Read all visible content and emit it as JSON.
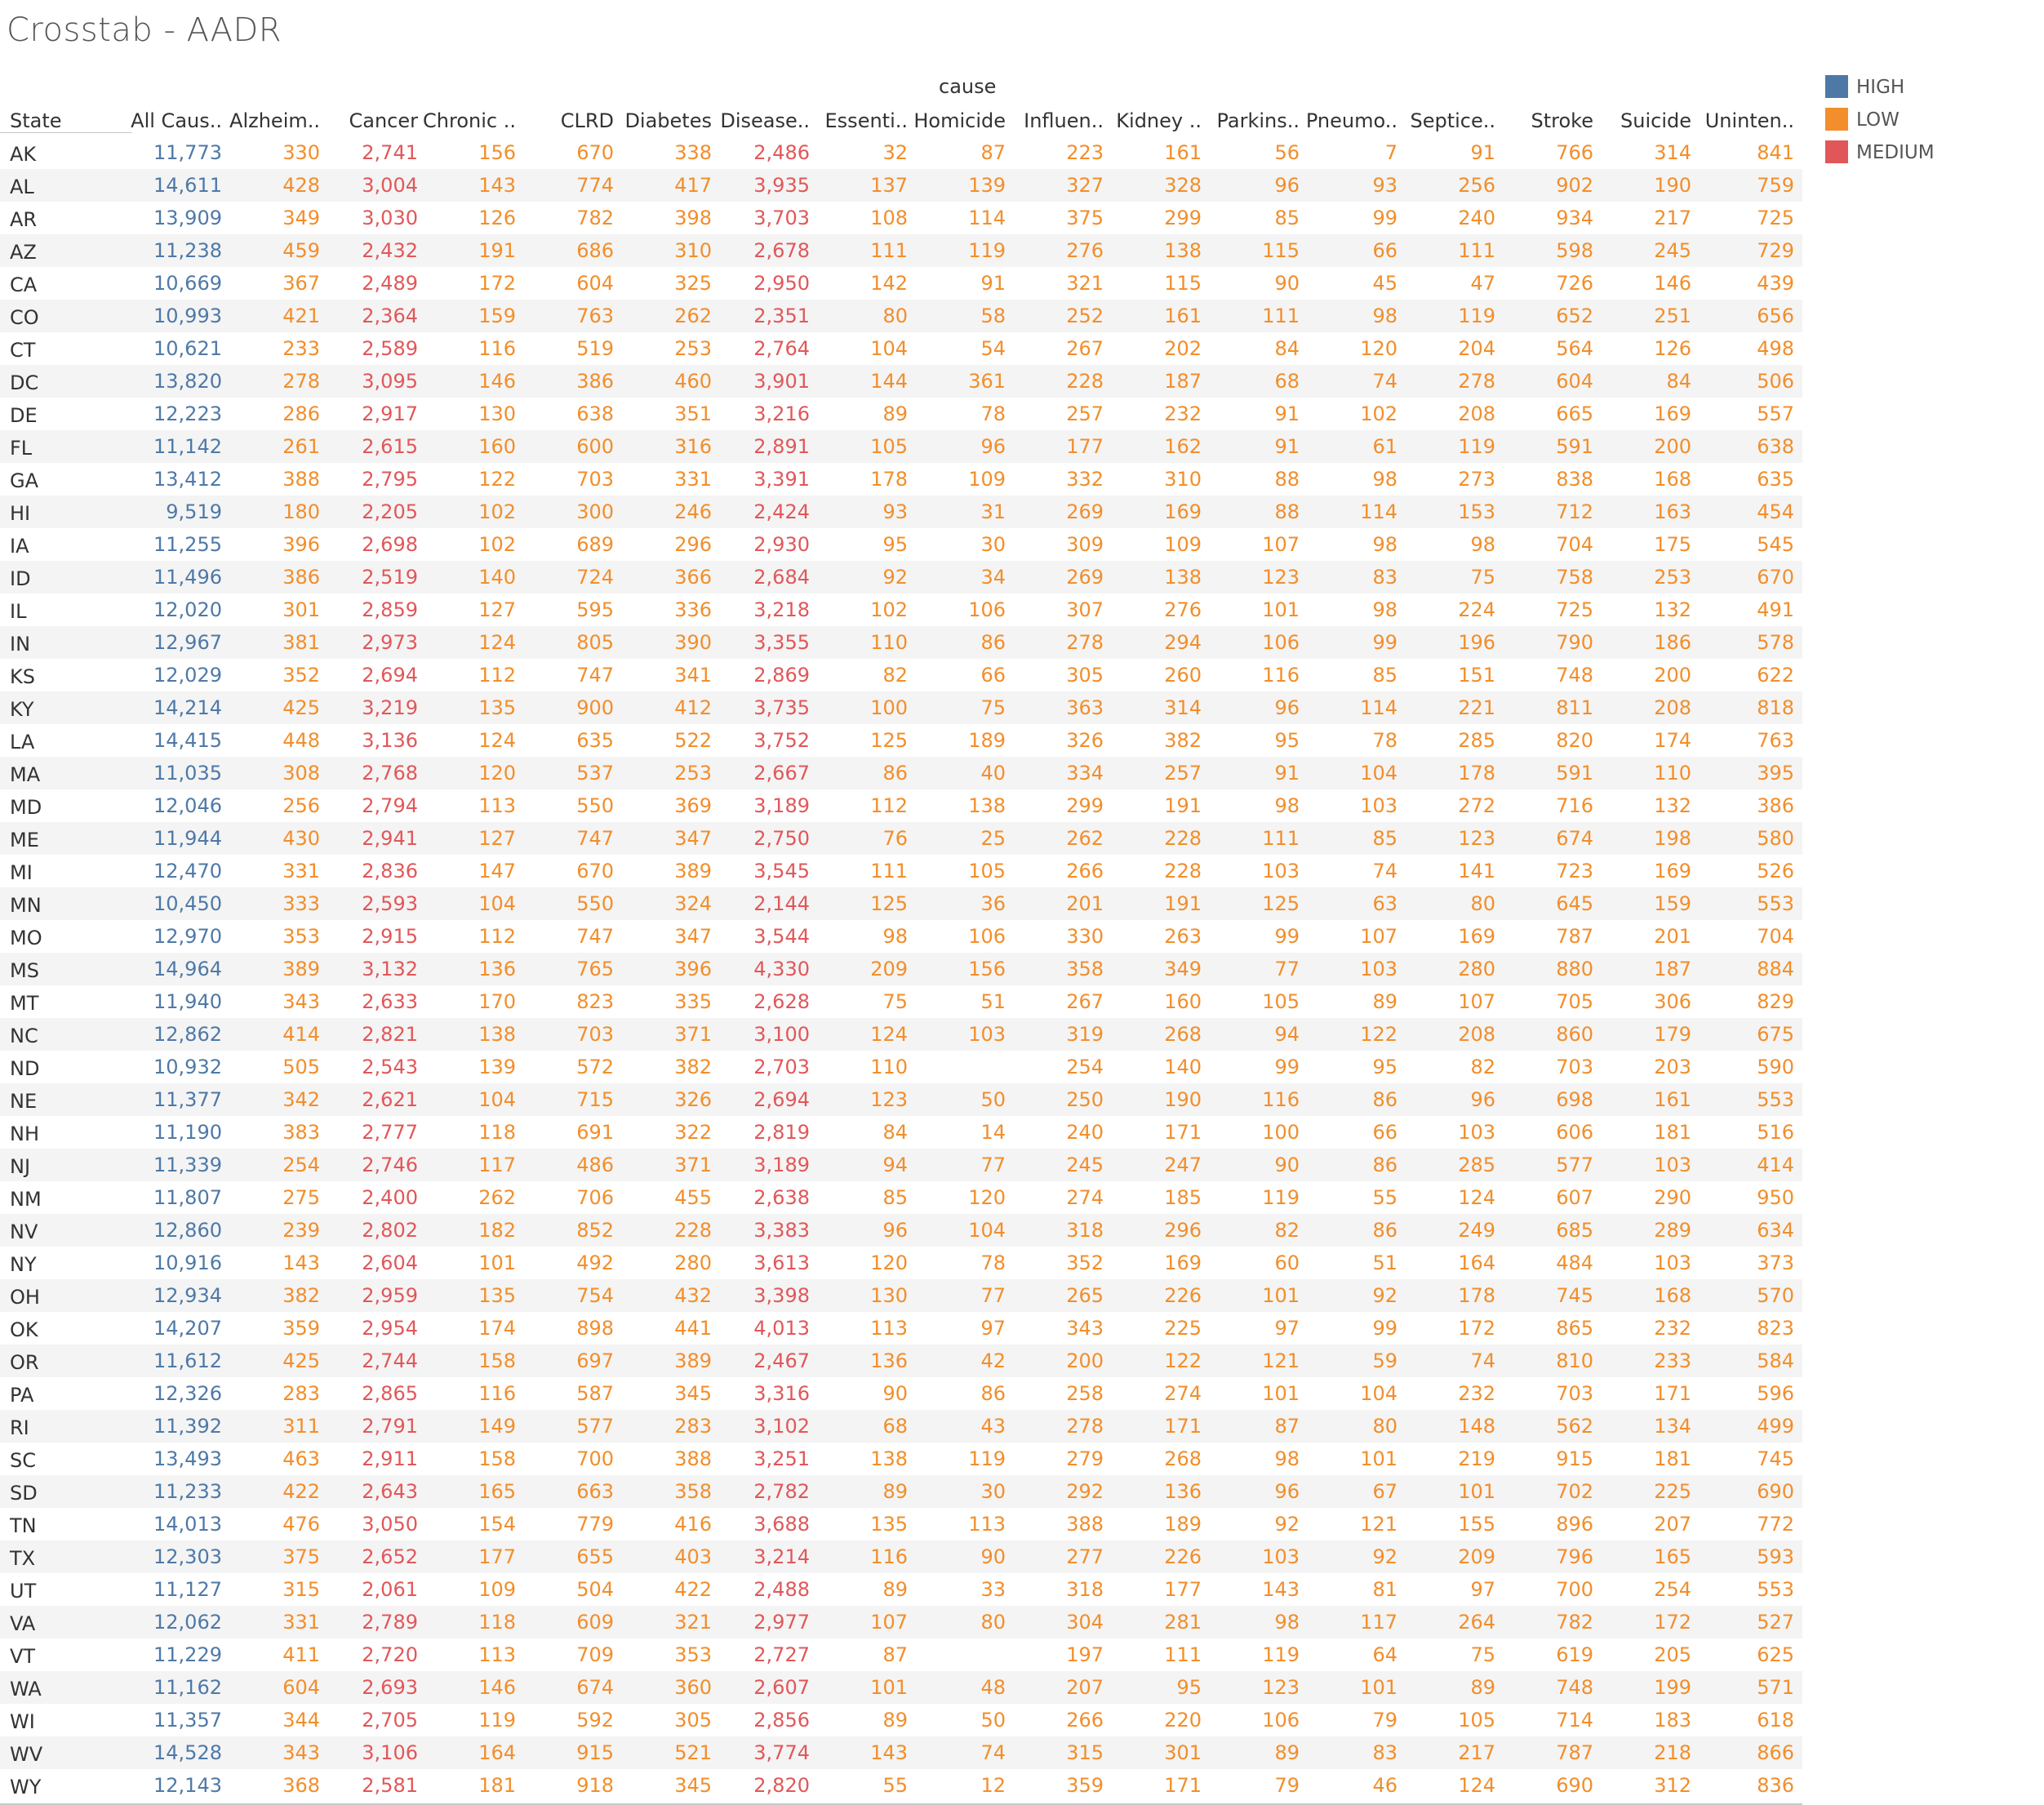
{
  "title": "Crosstab - AADR",
  "column_group_label": "cause",
  "row_header": "State",
  "colors": {
    "HIGH": "#4e79a7",
    "LOW": "#f28e2b",
    "MEDIUM": "#e15759"
  },
  "legend": [
    {
      "label": "HIGH",
      "color": "#4e79a7"
    },
    {
      "label": "LOW",
      "color": "#f28e2b"
    },
    {
      "label": "MEDIUM",
      "color": "#e15759"
    }
  ],
  "chart_data": {
    "type": "table",
    "title": "Crosstab - AADR",
    "columns": [
      "All Caus..",
      "Alzheim..",
      "Cancer",
      "Chronic ..",
      "CLRD",
      "Diabetes",
      "Disease..",
      "Essenti..",
      "Homicide",
      "Influen..",
      "Kidney ..",
      "Parkins..",
      "Pneumo..",
      "Septice..",
      "Stroke",
      "Suicide",
      "Uninten.."
    ],
    "column_levels": [
      "HIGH",
      "LOW",
      "MEDIUM",
      "LOW",
      "LOW",
      "LOW",
      "MEDIUM",
      "LOW",
      "LOW",
      "LOW",
      "LOW",
      "LOW",
      "LOW",
      "LOW",
      "LOW",
      "LOW",
      "LOW"
    ],
    "rows": [
      {
        "state": "AK",
        "values": [
          "11,773",
          "330",
          "2,741",
          "156",
          "670",
          "338",
          "2,486",
          "32",
          "87",
          "223",
          "161",
          "56",
          "7",
          "91",
          "766",
          "314",
          "841"
        ]
      },
      {
        "state": "AL",
        "values": [
          "14,611",
          "428",
          "3,004",
          "143",
          "774",
          "417",
          "3,935",
          "137",
          "139",
          "327",
          "328",
          "96",
          "93",
          "256",
          "902",
          "190",
          "759"
        ]
      },
      {
        "state": "AR",
        "values": [
          "13,909",
          "349",
          "3,030",
          "126",
          "782",
          "398",
          "3,703",
          "108",
          "114",
          "375",
          "299",
          "85",
          "99",
          "240",
          "934",
          "217",
          "725"
        ]
      },
      {
        "state": "AZ",
        "values": [
          "11,238",
          "459",
          "2,432",
          "191",
          "686",
          "310",
          "2,678",
          "111",
          "119",
          "276",
          "138",
          "115",
          "66",
          "111",
          "598",
          "245",
          "729"
        ]
      },
      {
        "state": "CA",
        "values": [
          "10,669",
          "367",
          "2,489",
          "172",
          "604",
          "325",
          "2,950",
          "142",
          "91",
          "321",
          "115",
          "90",
          "45",
          "47",
          "726",
          "146",
          "439"
        ]
      },
      {
        "state": "CO",
        "values": [
          "10,993",
          "421",
          "2,364",
          "159",
          "763",
          "262",
          "2,351",
          "80",
          "58",
          "252",
          "161",
          "111",
          "98",
          "119",
          "652",
          "251",
          "656"
        ]
      },
      {
        "state": "CT",
        "values": [
          "10,621",
          "233",
          "2,589",
          "116",
          "519",
          "253",
          "2,764",
          "104",
          "54",
          "267",
          "202",
          "84",
          "120",
          "204",
          "564",
          "126",
          "498"
        ]
      },
      {
        "state": "DC",
        "values": [
          "13,820",
          "278",
          "3,095",
          "146",
          "386",
          "460",
          "3,901",
          "144",
          "361",
          "228",
          "187",
          "68",
          "74",
          "278",
          "604",
          "84",
          "506"
        ]
      },
      {
        "state": "DE",
        "values": [
          "12,223",
          "286",
          "2,917",
          "130",
          "638",
          "351",
          "3,216",
          "89",
          "78",
          "257",
          "232",
          "91",
          "102",
          "208",
          "665",
          "169",
          "557"
        ]
      },
      {
        "state": "FL",
        "values": [
          "11,142",
          "261",
          "2,615",
          "160",
          "600",
          "316",
          "2,891",
          "105",
          "96",
          "177",
          "162",
          "91",
          "61",
          "119",
          "591",
          "200",
          "638"
        ]
      },
      {
        "state": "GA",
        "values": [
          "13,412",
          "388",
          "2,795",
          "122",
          "703",
          "331",
          "3,391",
          "178",
          "109",
          "332",
          "310",
          "88",
          "98",
          "273",
          "838",
          "168",
          "635"
        ]
      },
      {
        "state": "HI",
        "values": [
          "9,519",
          "180",
          "2,205",
          "102",
          "300",
          "246",
          "2,424",
          "93",
          "31",
          "269",
          "169",
          "88",
          "114",
          "153",
          "712",
          "163",
          "454"
        ]
      },
      {
        "state": "IA",
        "values": [
          "11,255",
          "396",
          "2,698",
          "102",
          "689",
          "296",
          "2,930",
          "95",
          "30",
          "309",
          "109",
          "107",
          "98",
          "98",
          "704",
          "175",
          "545"
        ]
      },
      {
        "state": "ID",
        "values": [
          "11,496",
          "386",
          "2,519",
          "140",
          "724",
          "366",
          "2,684",
          "92",
          "34",
          "269",
          "138",
          "123",
          "83",
          "75",
          "758",
          "253",
          "670"
        ]
      },
      {
        "state": "IL",
        "values": [
          "12,020",
          "301",
          "2,859",
          "127",
          "595",
          "336",
          "3,218",
          "102",
          "106",
          "307",
          "276",
          "101",
          "98",
          "224",
          "725",
          "132",
          "491"
        ]
      },
      {
        "state": "IN",
        "values": [
          "12,967",
          "381",
          "2,973",
          "124",
          "805",
          "390",
          "3,355",
          "110",
          "86",
          "278",
          "294",
          "106",
          "99",
          "196",
          "790",
          "186",
          "578"
        ]
      },
      {
        "state": "KS",
        "values": [
          "12,029",
          "352",
          "2,694",
          "112",
          "747",
          "341",
          "2,869",
          "82",
          "66",
          "305",
          "260",
          "116",
          "85",
          "151",
          "748",
          "200",
          "622"
        ]
      },
      {
        "state": "KY",
        "values": [
          "14,214",
          "425",
          "3,219",
          "135",
          "900",
          "412",
          "3,735",
          "100",
          "75",
          "363",
          "314",
          "96",
          "114",
          "221",
          "811",
          "208",
          "818"
        ]
      },
      {
        "state": "LA",
        "values": [
          "14,415",
          "448",
          "3,136",
          "124",
          "635",
          "522",
          "3,752",
          "125",
          "189",
          "326",
          "382",
          "95",
          "78",
          "285",
          "820",
          "174",
          "763"
        ]
      },
      {
        "state": "MA",
        "values": [
          "11,035",
          "308",
          "2,768",
          "120",
          "537",
          "253",
          "2,667",
          "86",
          "40",
          "334",
          "257",
          "91",
          "104",
          "178",
          "591",
          "110",
          "395"
        ]
      },
      {
        "state": "MD",
        "values": [
          "12,046",
          "256",
          "2,794",
          "113",
          "550",
          "369",
          "3,189",
          "112",
          "138",
          "299",
          "191",
          "98",
          "103",
          "272",
          "716",
          "132",
          "386"
        ]
      },
      {
        "state": "ME",
        "values": [
          "11,944",
          "430",
          "2,941",
          "127",
          "747",
          "347",
          "2,750",
          "76",
          "25",
          "262",
          "228",
          "111",
          "85",
          "123",
          "674",
          "198",
          "580"
        ]
      },
      {
        "state": "MI",
        "values": [
          "12,470",
          "331",
          "2,836",
          "147",
          "670",
          "389",
          "3,545",
          "111",
          "105",
          "266",
          "228",
          "103",
          "74",
          "141",
          "723",
          "169",
          "526"
        ]
      },
      {
        "state": "MN",
        "values": [
          "10,450",
          "333",
          "2,593",
          "104",
          "550",
          "324",
          "2,144",
          "125",
          "36",
          "201",
          "191",
          "125",
          "63",
          "80",
          "645",
          "159",
          "553"
        ]
      },
      {
        "state": "MO",
        "values": [
          "12,970",
          "353",
          "2,915",
          "112",
          "747",
          "347",
          "3,544",
          "98",
          "106",
          "330",
          "263",
          "99",
          "107",
          "169",
          "787",
          "201",
          "704"
        ]
      },
      {
        "state": "MS",
        "values": [
          "14,964",
          "389",
          "3,132",
          "136",
          "765",
          "396",
          "4,330",
          "209",
          "156",
          "358",
          "349",
          "77",
          "103",
          "280",
          "880",
          "187",
          "884"
        ]
      },
      {
        "state": "MT",
        "values": [
          "11,940",
          "343",
          "2,633",
          "170",
          "823",
          "335",
          "2,628",
          "75",
          "51",
          "267",
          "160",
          "105",
          "89",
          "107",
          "705",
          "306",
          "829"
        ]
      },
      {
        "state": "NC",
        "values": [
          "12,862",
          "414",
          "2,821",
          "138",
          "703",
          "371",
          "3,100",
          "124",
          "103",
          "319",
          "268",
          "94",
          "122",
          "208",
          "860",
          "179",
          "675"
        ]
      },
      {
        "state": "ND",
        "values": [
          "10,932",
          "505",
          "2,543",
          "139",
          "572",
          "382",
          "2,703",
          "110",
          "",
          "254",
          "140",
          "99",
          "95",
          "82",
          "703",
          "203",
          "590"
        ]
      },
      {
        "state": "NE",
        "values": [
          "11,377",
          "342",
          "2,621",
          "104",
          "715",
          "326",
          "2,694",
          "123",
          "50",
          "250",
          "190",
          "116",
          "86",
          "96",
          "698",
          "161",
          "553"
        ]
      },
      {
        "state": "NH",
        "values": [
          "11,190",
          "383",
          "2,777",
          "118",
          "691",
          "322",
          "2,819",
          "84",
          "14",
          "240",
          "171",
          "100",
          "66",
          "103",
          "606",
          "181",
          "516"
        ]
      },
      {
        "state": "NJ",
        "values": [
          "11,339",
          "254",
          "2,746",
          "117",
          "486",
          "371",
          "3,189",
          "94",
          "77",
          "245",
          "247",
          "90",
          "86",
          "285",
          "577",
          "103",
          "414"
        ]
      },
      {
        "state": "NM",
        "values": [
          "11,807",
          "275",
          "2,400",
          "262",
          "706",
          "455",
          "2,638",
          "85",
          "120",
          "274",
          "185",
          "119",
          "55",
          "124",
          "607",
          "290",
          "950"
        ]
      },
      {
        "state": "NV",
        "values": [
          "12,860",
          "239",
          "2,802",
          "182",
          "852",
          "228",
          "3,383",
          "96",
          "104",
          "318",
          "296",
          "82",
          "86",
          "249",
          "685",
          "289",
          "634"
        ]
      },
      {
        "state": "NY",
        "values": [
          "10,916",
          "143",
          "2,604",
          "101",
          "492",
          "280",
          "3,613",
          "120",
          "78",
          "352",
          "169",
          "60",
          "51",
          "164",
          "484",
          "103",
          "373"
        ]
      },
      {
        "state": "OH",
        "values": [
          "12,934",
          "382",
          "2,959",
          "135",
          "754",
          "432",
          "3,398",
          "130",
          "77",
          "265",
          "226",
          "101",
          "92",
          "178",
          "745",
          "168",
          "570"
        ]
      },
      {
        "state": "OK",
        "values": [
          "14,207",
          "359",
          "2,954",
          "174",
          "898",
          "441",
          "4,013",
          "113",
          "97",
          "343",
          "225",
          "97",
          "99",
          "172",
          "865",
          "232",
          "823"
        ]
      },
      {
        "state": "OR",
        "values": [
          "11,612",
          "425",
          "2,744",
          "158",
          "697",
          "389",
          "2,467",
          "136",
          "42",
          "200",
          "122",
          "121",
          "59",
          "74",
          "810",
          "233",
          "584"
        ]
      },
      {
        "state": "PA",
        "values": [
          "12,326",
          "283",
          "2,865",
          "116",
          "587",
          "345",
          "3,316",
          "90",
          "86",
          "258",
          "274",
          "101",
          "104",
          "232",
          "703",
          "171",
          "596"
        ]
      },
      {
        "state": "RI",
        "values": [
          "11,392",
          "311",
          "2,791",
          "149",
          "577",
          "283",
          "3,102",
          "68",
          "43",
          "278",
          "171",
          "87",
          "80",
          "148",
          "562",
          "134",
          "499"
        ]
      },
      {
        "state": "SC",
        "values": [
          "13,493",
          "463",
          "2,911",
          "158",
          "700",
          "388",
          "3,251",
          "138",
          "119",
          "279",
          "268",
          "98",
          "101",
          "219",
          "915",
          "181",
          "745"
        ]
      },
      {
        "state": "SD",
        "values": [
          "11,233",
          "422",
          "2,643",
          "165",
          "663",
          "358",
          "2,782",
          "89",
          "30",
          "292",
          "136",
          "96",
          "67",
          "101",
          "702",
          "225",
          "690"
        ]
      },
      {
        "state": "TN",
        "values": [
          "14,013",
          "476",
          "3,050",
          "154",
          "779",
          "416",
          "3,688",
          "135",
          "113",
          "388",
          "189",
          "92",
          "121",
          "155",
          "896",
          "207",
          "772"
        ]
      },
      {
        "state": "TX",
        "values": [
          "12,303",
          "375",
          "2,652",
          "177",
          "655",
          "403",
          "3,214",
          "116",
          "90",
          "277",
          "226",
          "103",
          "92",
          "209",
          "796",
          "165",
          "593"
        ]
      },
      {
        "state": "UT",
        "values": [
          "11,127",
          "315",
          "2,061",
          "109",
          "504",
          "422",
          "2,488",
          "89",
          "33",
          "318",
          "177",
          "143",
          "81",
          "97",
          "700",
          "254",
          "553"
        ]
      },
      {
        "state": "VA",
        "values": [
          "12,062",
          "331",
          "2,789",
          "118",
          "609",
          "321",
          "2,977",
          "107",
          "80",
          "304",
          "281",
          "98",
          "117",
          "264",
          "782",
          "172",
          "527"
        ]
      },
      {
        "state": "VT",
        "values": [
          "11,229",
          "411",
          "2,720",
          "113",
          "709",
          "353",
          "2,727",
          "87",
          "",
          "197",
          "111",
          "119",
          "64",
          "75",
          "619",
          "205",
          "625"
        ]
      },
      {
        "state": "WA",
        "values": [
          "11,162",
          "604",
          "2,693",
          "146",
          "674",
          "360",
          "2,607",
          "101",
          "48",
          "207",
          "95",
          "123",
          "101",
          "89",
          "748",
          "199",
          "571"
        ]
      },
      {
        "state": "WI",
        "values": [
          "11,357",
          "344",
          "2,705",
          "119",
          "592",
          "305",
          "2,856",
          "89",
          "50",
          "266",
          "220",
          "106",
          "79",
          "105",
          "714",
          "183",
          "618"
        ]
      },
      {
        "state": "WV",
        "values": [
          "14,528",
          "343",
          "3,106",
          "164",
          "915",
          "521",
          "3,774",
          "143",
          "74",
          "315",
          "301",
          "89",
          "83",
          "217",
          "787",
          "218",
          "866"
        ]
      },
      {
        "state": "WY",
        "values": [
          "12,143",
          "368",
          "2,581",
          "181",
          "918",
          "345",
          "2,820",
          "55",
          "12",
          "359",
          "171",
          "79",
          "46",
          "124",
          "690",
          "312",
          "836"
        ]
      }
    ]
  }
}
